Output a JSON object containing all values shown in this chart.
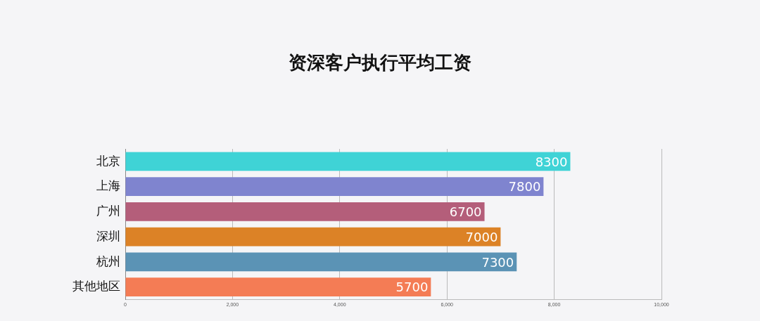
{
  "chart_data": {
    "type": "bar",
    "orientation": "horizontal",
    "title": "资深客户执行平均工资",
    "categories": [
      "北京",
      "上海",
      "广州",
      "深圳",
      "杭州",
      "其他地区"
    ],
    "values": [
      8300,
      7800,
      6700,
      7000,
      7300,
      5700
    ],
    "colors": [
      "#3fd3d6",
      "#7f84cf",
      "#b45e7a",
      "#dc8226",
      "#5b93b5",
      "#f47c55"
    ],
    "xlim": [
      0,
      10000
    ],
    "xticks": [
      {
        "value": 0,
        "label": "0"
      },
      {
        "value": 2000,
        "label": "2,000"
      },
      {
        "value": 4000,
        "label": "4,000"
      },
      {
        "value": 6000,
        "label": "6,000"
      },
      {
        "value": 8000,
        "label": "8,000"
      },
      {
        "value": 10000,
        "label": "10,000"
      }
    ],
    "grid": "x",
    "data_labels": true,
    "legend": false
  }
}
